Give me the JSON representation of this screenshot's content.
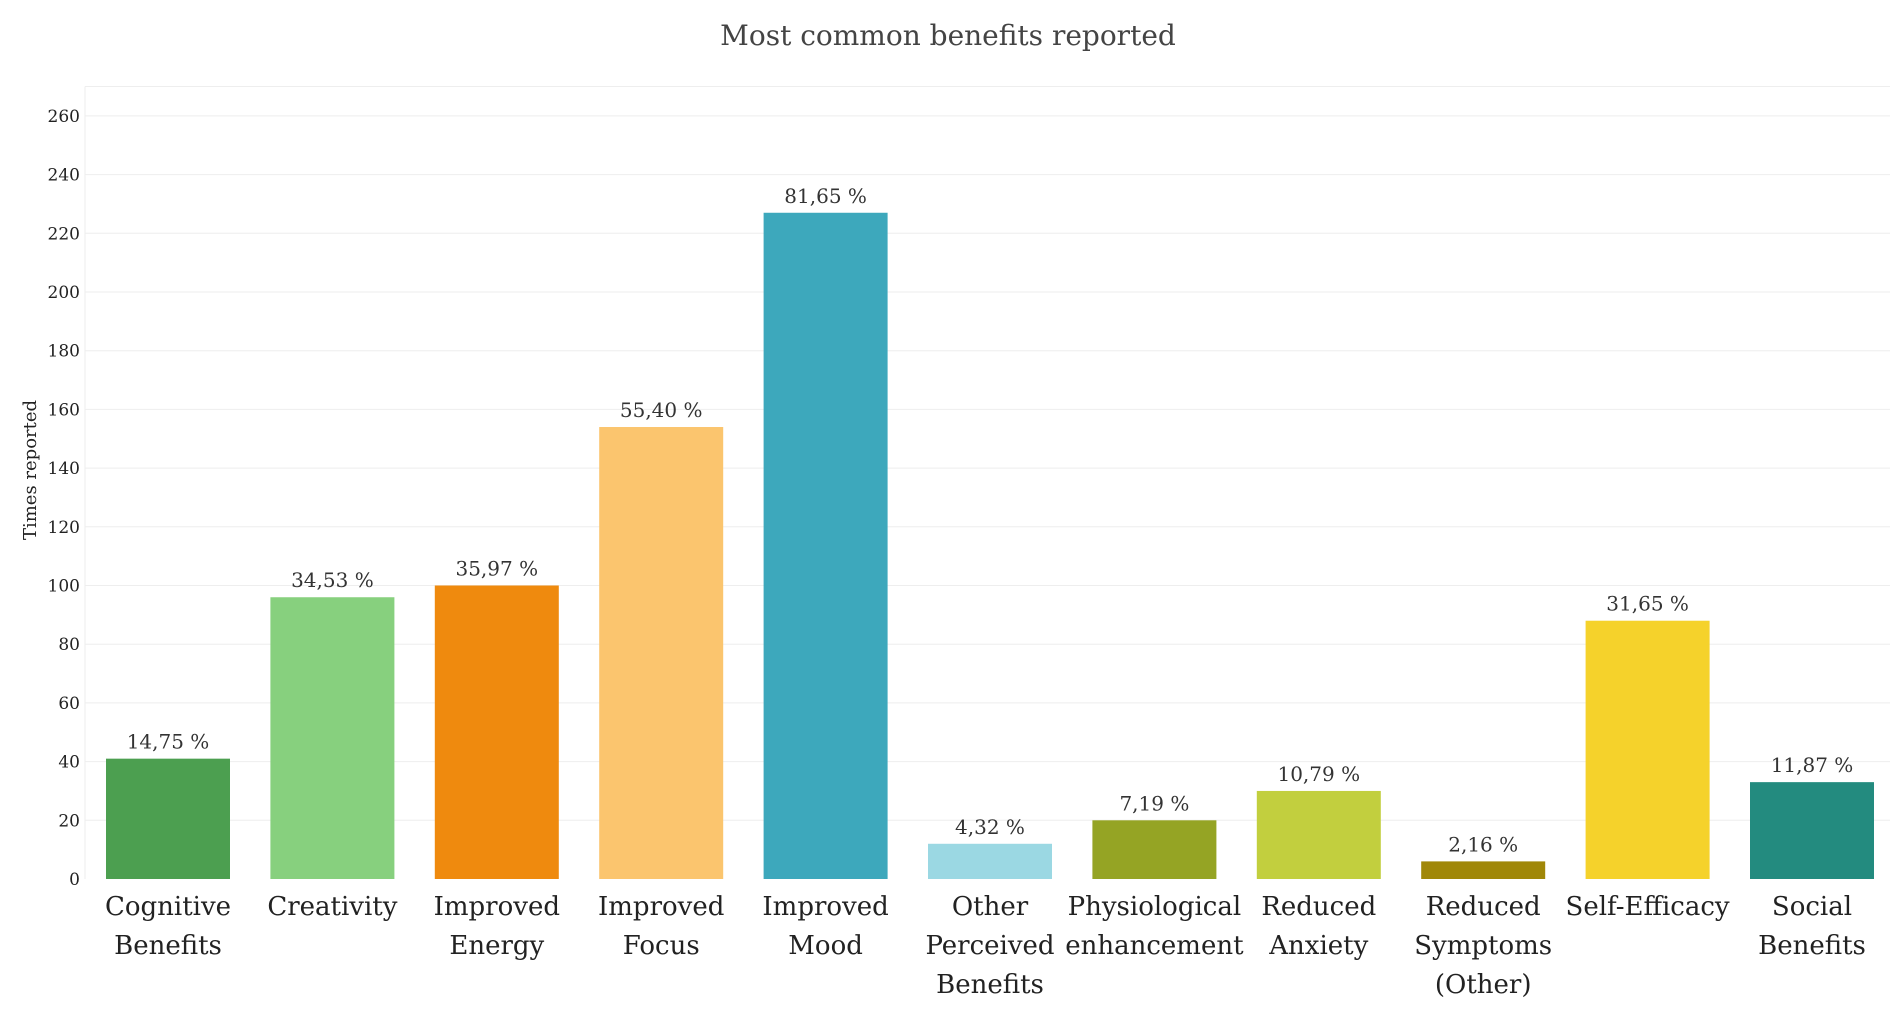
{
  "chart_data": {
    "type": "bar",
    "title": "Most common benefits reported",
    "xlabel": "",
    "ylabel": "Times reported",
    "ylim": [
      0,
      270
    ],
    "yticks": [
      0,
      20,
      40,
      60,
      80,
      100,
      120,
      140,
      160,
      180,
      200,
      220,
      240,
      260
    ],
    "grid": true,
    "legend": "none",
    "categories": [
      [
        "Cognitive",
        "Benefits"
      ],
      [
        "Creativity"
      ],
      [
        "Improved",
        "Energy"
      ],
      [
        "Improved",
        "Focus"
      ],
      [
        "Improved",
        "Mood"
      ],
      [
        "Other",
        "Perceived",
        "Benefits"
      ],
      [
        "Physiological",
        "enhancement"
      ],
      [
        "Reduced",
        "Anxiety"
      ],
      [
        "Reduced",
        "Symptoms",
        "(Other)"
      ],
      [
        "Self-Efficacy"
      ],
      [
        "Social",
        "Benefits"
      ]
    ],
    "values": [
      41,
      96,
      100,
      154,
      227,
      12,
      20,
      30,
      6,
      88,
      33
    ],
    "data_labels": [
      "14,75 %",
      "34,53 %",
      "35,97 %",
      "55,40 %",
      "81,65 %",
      "4,32 %",
      "7,19 %",
      "10,79 %",
      "2,16 %",
      "31,65 %",
      "11,87 %"
    ],
    "colors": [
      "#4c9f50",
      "#87d07e",
      "#ef8a0e",
      "#fbc56e",
      "#3da8bc",
      "#9bd8e3",
      "#95a424",
      "#c2cf3e",
      "#a08708",
      "#f5d22b",
      "#238b7f"
    ]
  }
}
